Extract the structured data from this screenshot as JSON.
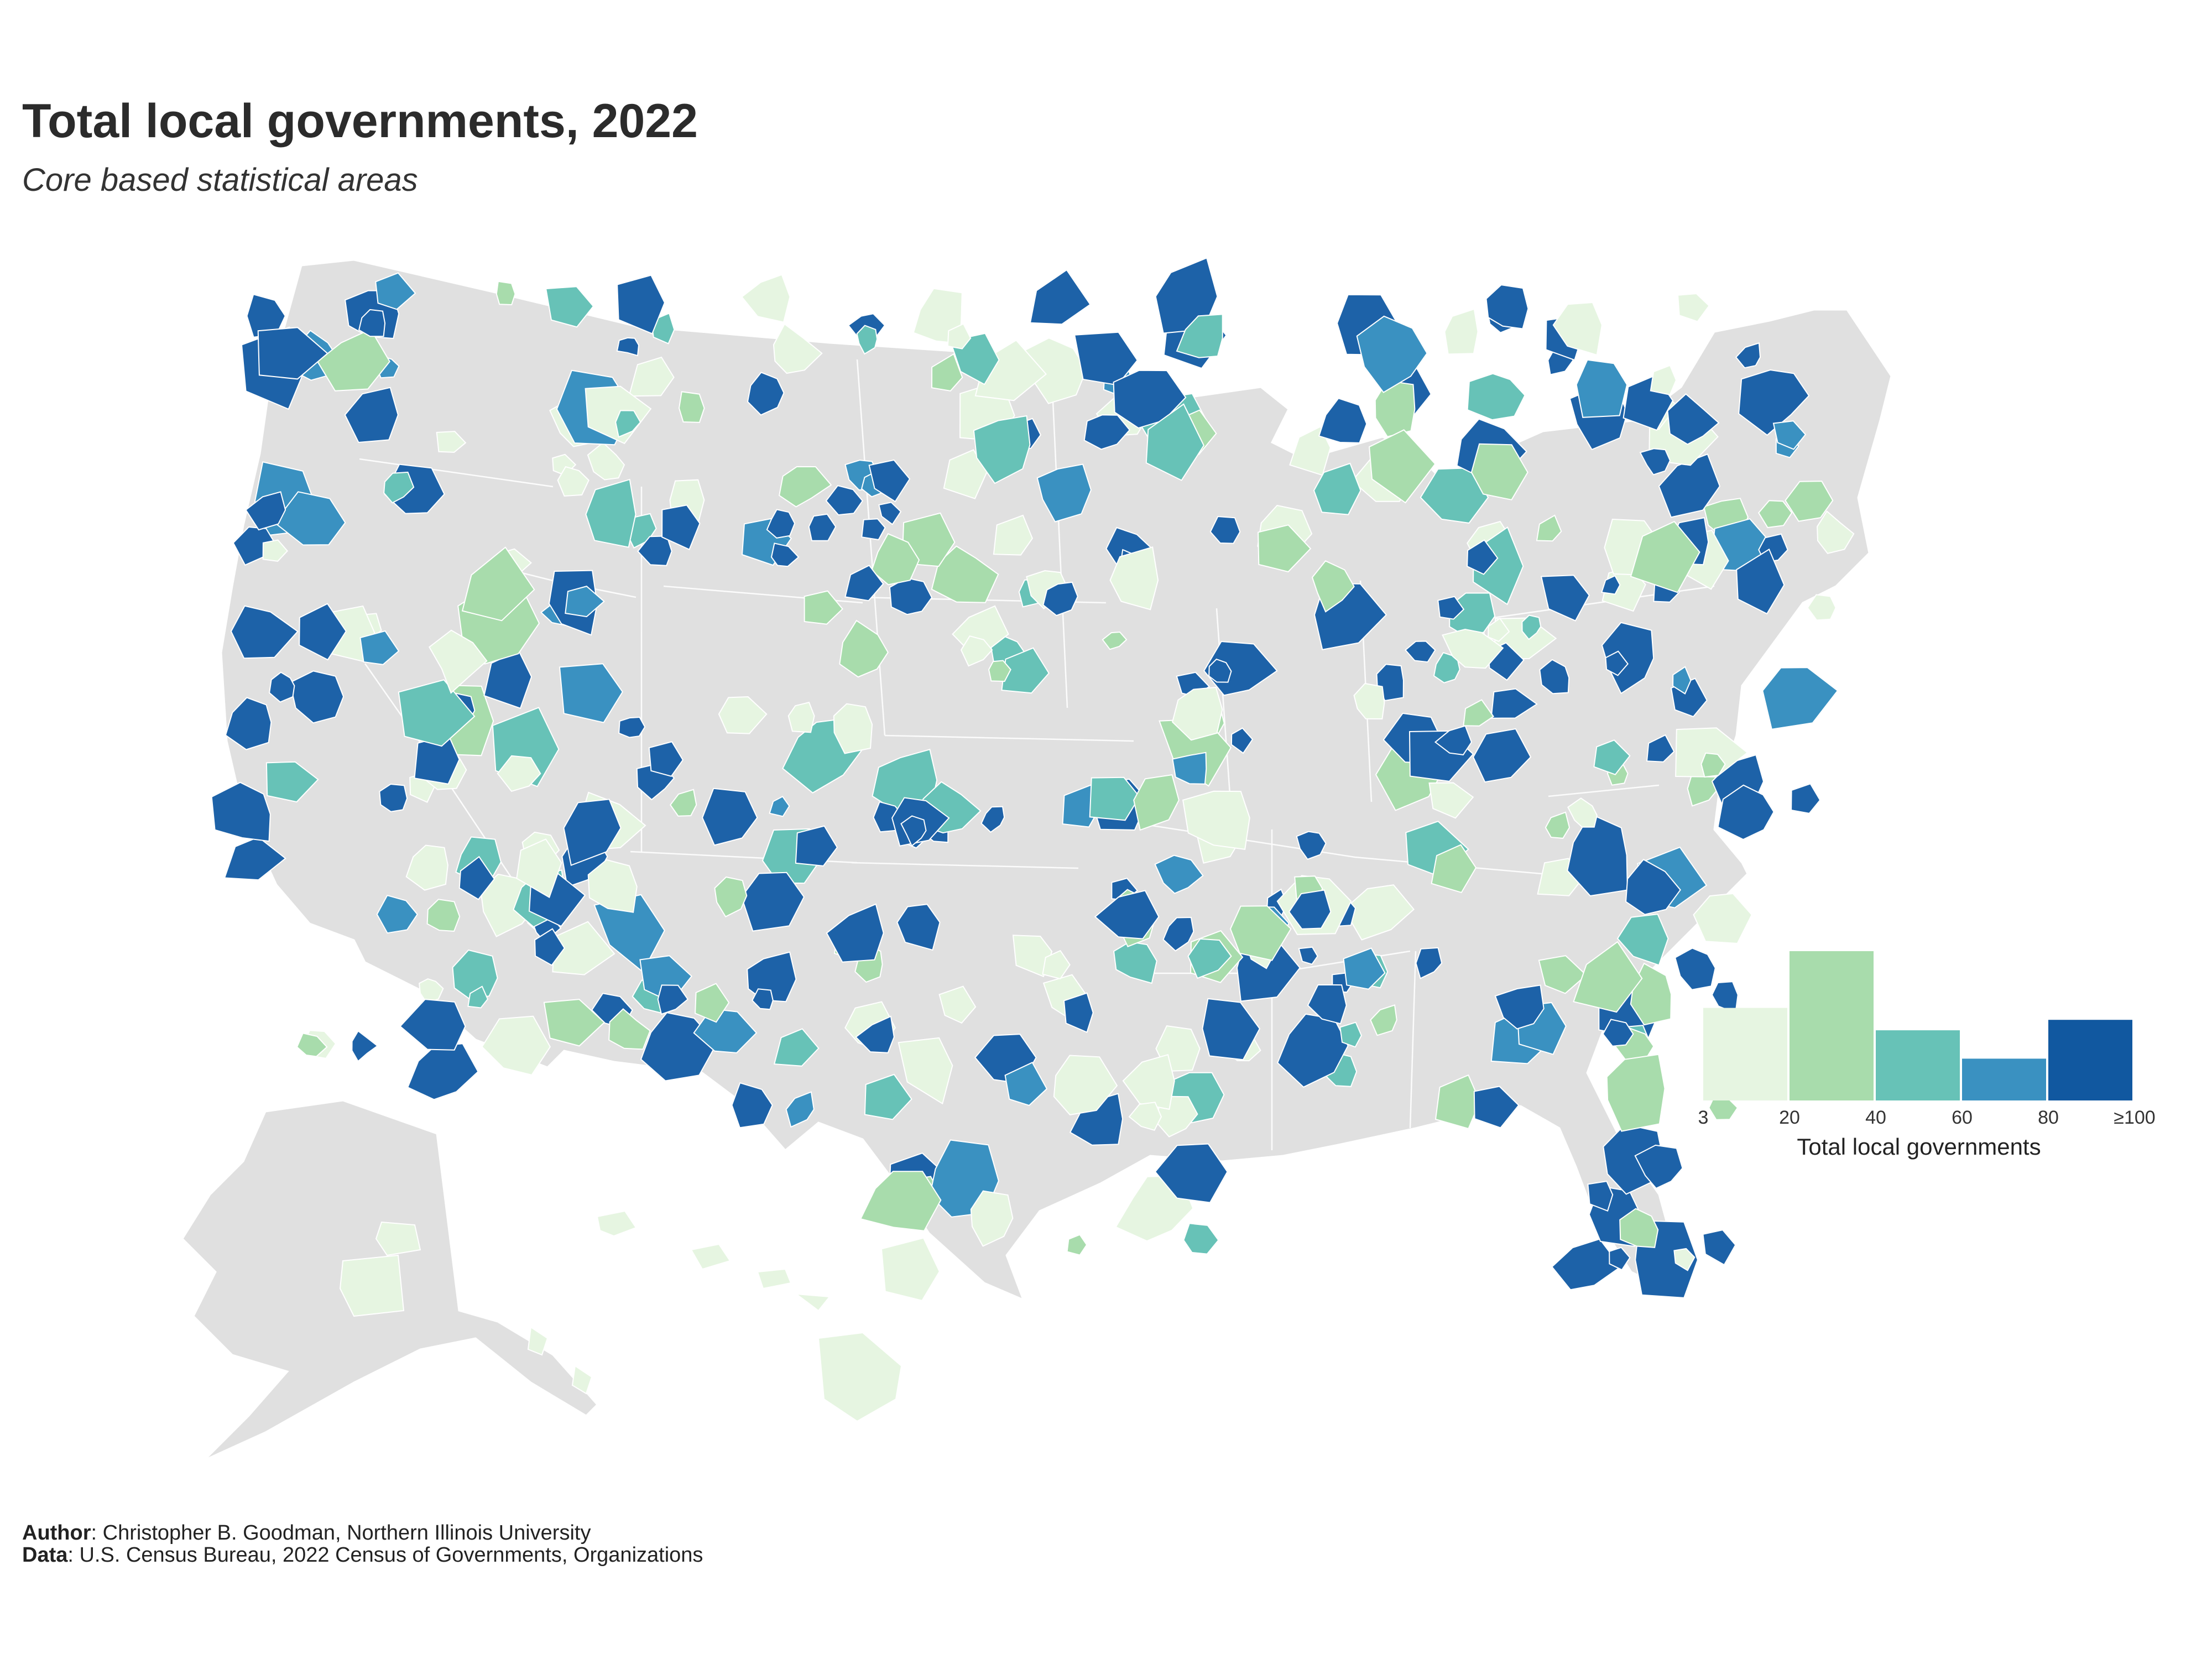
{
  "header": {
    "title": "Total local governments, 2022",
    "subtitle": "Core based statistical areas"
  },
  "legend": {
    "title": "Total local governments",
    "tick_labels": [
      "3",
      "20",
      "40",
      "60",
      "80",
      "≥100"
    ],
    "bins": [
      {
        "range": "3–20",
        "color": "#e6f5e1",
        "relative_count": 0.62
      },
      {
        "range": "20–40",
        "color": "#a8dcac",
        "relative_count": 1.0
      },
      {
        "range": "40–60",
        "color": "#67c2b7",
        "relative_count": 0.47
      },
      {
        "range": "60–80",
        "color": "#3a91c1",
        "relative_count": 0.28
      },
      {
        "range": "≥100",
        "color": "#1158a0",
        "relative_count": 0.54
      }
    ]
  },
  "map": {
    "base_color": "#e0e0e0",
    "border_color": "#ffffff",
    "palette": [
      "#e6f5e1",
      "#a8dcac",
      "#67c2b7",
      "#3a91c1",
      "#1d62a8"
    ]
  },
  "footer": {
    "author_label": "Author",
    "author_text": ": Christopher B. Goodman, Northern Illinois University",
    "data_label": "Data",
    "data_text": ": U.S. Census Bureau, 2022 Census of Governments, Organizations"
  }
}
